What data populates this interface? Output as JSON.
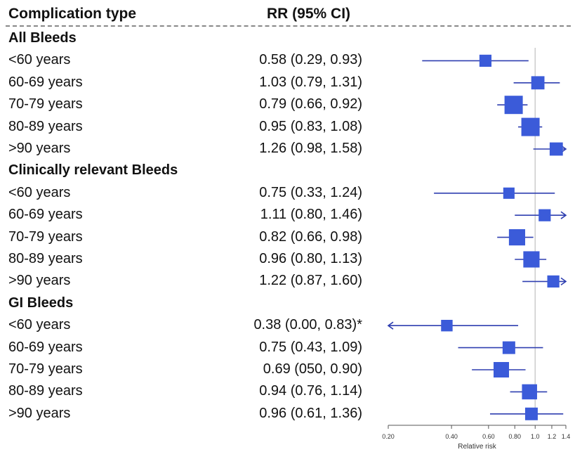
{
  "header": {
    "col_type": "Complication type",
    "col_rr": "RR (95% CI)"
  },
  "groups": [
    {
      "name": "All Bleeds",
      "rows": [
        {
          "label": "<60 years",
          "rr_text": "0.58 (0.29, 0.93)",
          "est": 0.58,
          "lo": 0.29,
          "hi": 0.93,
          "weight": 0.45,
          "arrow_left": false,
          "arrow_right": false
        },
        {
          "label": "60-69 years",
          "rr_text": "1.03 (0.79, 1.31)",
          "est": 1.03,
          "lo": 0.79,
          "hi": 1.31,
          "weight": 0.55,
          "arrow_left": false,
          "arrow_right": false
        },
        {
          "label": "70-79 years",
          "rr_text": "0.79 (0.66, 0.92)",
          "est": 0.79,
          "lo": 0.66,
          "hi": 0.92,
          "weight": 1.0,
          "arrow_left": false,
          "arrow_right": false
        },
        {
          "label": "80-89 years",
          "rr_text": "0.95 (0.83, 1.08)",
          "est": 0.95,
          "lo": 0.83,
          "hi": 1.08,
          "weight": 1.0,
          "arrow_left": false,
          "arrow_right": false
        },
        {
          "label": ">90 years",
          "rr_text": "1.26 (0.98, 1.58)",
          "est": 1.26,
          "lo": 0.98,
          "hi": 1.58,
          "weight": 0.55,
          "arrow_left": false,
          "arrow_right": true
        }
      ]
    },
    {
      "name": "Clinically relevant Bleeds",
      "rows": [
        {
          "label": "<60 years",
          "rr_text": "0.75 (0.33, 1.24)",
          "est": 0.75,
          "lo": 0.33,
          "hi": 1.24,
          "weight": 0.38,
          "arrow_left": false,
          "arrow_right": false
        },
        {
          "label": "60-69 years",
          "rr_text": "1.11 (0.80, 1.46)",
          "est": 1.11,
          "lo": 0.8,
          "hi": 1.46,
          "weight": 0.45,
          "arrow_left": false,
          "arrow_right": true
        },
        {
          "label": "70-79 years",
          "rr_text": "0.82 (0.66, 0.98)",
          "est": 0.82,
          "lo": 0.66,
          "hi": 0.98,
          "weight": 0.82,
          "arrow_left": false,
          "arrow_right": false
        },
        {
          "label": "80-89 years",
          "rr_text": "0.96 (0.80, 1.13)",
          "est": 0.96,
          "lo": 0.8,
          "hi": 1.13,
          "weight": 0.82,
          "arrow_left": false,
          "arrow_right": false
        },
        {
          "label": ">90 years",
          "rr_text": "1.22 (0.87, 1.60)",
          "est": 1.22,
          "lo": 0.87,
          "hi": 1.6,
          "weight": 0.45,
          "arrow_left": false,
          "arrow_right": true
        }
      ]
    },
    {
      "name": "GI Bleeds",
      "rows": [
        {
          "label": "<60 years",
          "rr_text": "0.38 (0.00, 0.83)*",
          "est": 0.38,
          "lo": 0.0,
          "hi": 0.83,
          "weight": 0.4,
          "arrow_left": true,
          "arrow_right": false
        },
        {
          "label": "60-69 years",
          "rr_text": "0.75 (0.43, 1.09)",
          "est": 0.75,
          "lo": 0.43,
          "hi": 1.09,
          "weight": 0.5,
          "arrow_left": false,
          "arrow_right": false
        },
        {
          "label": "70-79 years",
          "rr_text": "0.69 (050, 0.90)",
          "est": 0.69,
          "lo": 0.5,
          "hi": 0.9,
          "weight": 0.75,
          "arrow_left": false,
          "arrow_right": false
        },
        {
          "label": "80-89 years",
          "rr_text": "0.94 (0.76, 1.14)",
          "est": 0.94,
          "lo": 0.76,
          "hi": 1.14,
          "weight": 0.72,
          "arrow_left": false,
          "arrow_right": false
        },
        {
          "label": ">90 years",
          "rr_text": "0.96 (0.61, 1.36)",
          "est": 0.96,
          "lo": 0.61,
          "hi": 1.36,
          "weight": 0.5,
          "arrow_left": false,
          "arrow_right": false
        }
      ]
    }
  ],
  "chart_data": {
    "type": "scatter",
    "subtype": "forest-plot",
    "xlabel": "Relative risk",
    "x_scale": "log",
    "xlim": [
      0.2,
      1.4
    ],
    "x_ticks": [
      0.2,
      0.4,
      0.6,
      0.8,
      1.0,
      1.2,
      1.4
    ],
    "x_tick_labels": [
      "0.20",
      "0.40",
      "0.60",
      "0.80",
      "1.0",
      "1.2",
      "1.4"
    ],
    "reference_line": 1.0,
    "marker_color": "#3b5bd9",
    "ci_color": "#2f3fb0",
    "reference_line_color": "#cccccc",
    "title": "",
    "ylabel": ""
  }
}
